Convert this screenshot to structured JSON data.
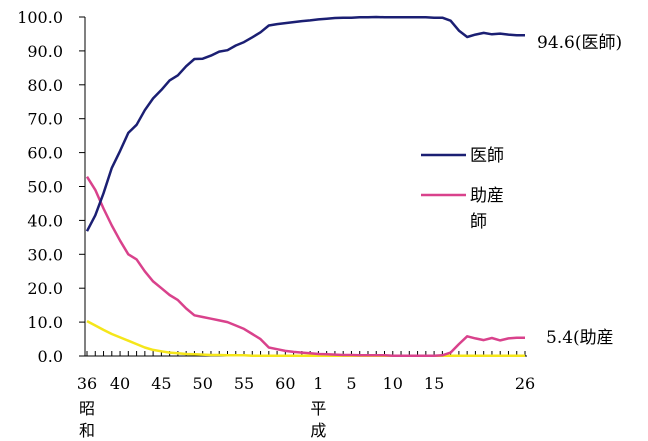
{
  "chart_data": {
    "type": "line",
    "title": "",
    "xlabel": "",
    "ylabel": "",
    "ylim": [
      0,
      100
    ],
    "y_ticks": [
      "0.0",
      "10.0",
      "20.0",
      "30.0",
      "40.0",
      "50.0",
      "60.0",
      "70.0",
      "80.0",
      "90.0",
      "100.0"
    ],
    "x_ticks": [
      "36",
      "40",
      "45",
      "50",
      "55",
      "60",
      "1",
      "5",
      "10",
      "15",
      "26"
    ],
    "era_labels": {
      "showa_1": "昭",
      "showa_2": "和",
      "heisei_1": "平",
      "heisei_2": "成"
    },
    "x": [
      "S36",
      "S37",
      "S38",
      "S39",
      "S40",
      "S41",
      "S42",
      "S43",
      "S44",
      "S45",
      "S46",
      "S47",
      "S48",
      "S49",
      "S50",
      "S51",
      "S52",
      "S53",
      "S54",
      "S55",
      "S56",
      "S57",
      "S58",
      "S59",
      "S60",
      "S61",
      "S62",
      "S63",
      "H1",
      "H2",
      "H3",
      "H4",
      "H5",
      "H6",
      "H7",
      "H8",
      "H9",
      "H10",
      "H11",
      "H12",
      "H13",
      "H14",
      "H15",
      "H16",
      "H17",
      "H18",
      "H19",
      "H20",
      "H21",
      "H22",
      "H23",
      "H24",
      "H25",
      "H26"
    ],
    "series": [
      {
        "name": "医師",
        "color": "#1b1f73",
        "values": [
          36.8,
          41.5,
          48.0,
          55.5,
          60.5,
          65.8,
          68.2,
          72.5,
          76.0,
          78.5,
          81.3,
          82.8,
          85.5,
          87.6,
          87.7,
          88.6,
          89.8,
          90.2,
          91.6,
          92.6,
          94.0,
          95.5,
          97.5,
          97.9,
          98.2,
          98.5,
          98.8,
          99.0,
          99.3,
          99.5,
          99.7,
          99.8,
          99.8,
          99.9,
          99.9,
          100.0,
          99.9,
          99.9,
          99.9,
          99.9,
          99.9,
          99.9,
          99.8,
          99.8,
          98.9,
          96.0,
          94.1,
          94.8,
          95.3,
          94.9,
          95.1,
          94.8,
          94.6,
          94.6
        ]
      },
      {
        "name": "助産師",
        "color": "#d9428c",
        "values": [
          52.9,
          49.0,
          43.5,
          38.5,
          34.0,
          30.0,
          28.5,
          25.0,
          22.0,
          20.0,
          18.0,
          16.5,
          14.0,
          12.0,
          11.5,
          11.0,
          10.5,
          10.0,
          9.0,
          8.0,
          6.5,
          5.0,
          2.5,
          2.0,
          1.5,
          1.2,
          1.0,
          0.8,
          0.6,
          0.5,
          0.4,
          0.3,
          0.3,
          0.2,
          0.2,
          0.2,
          0.2,
          0.1,
          0.1,
          0.1,
          0.1,
          0.1,
          0.1,
          0.2,
          1.0,
          3.5,
          5.8,
          5.2,
          4.7,
          5.3,
          4.6,
          5.2,
          5.4,
          5.4
        ]
      },
      {
        "name": "",
        "color": "#f5e61a",
        "values": [
          10.3,
          9.0,
          7.7,
          6.5,
          5.5,
          4.5,
          3.5,
          2.5,
          1.8,
          1.4,
          1.0,
          0.8,
          0.6,
          0.5,
          0.4,
          0.3,
          0.3,
          0.2,
          0.2,
          0.2,
          0.1,
          0.1,
          0.1,
          0.1,
          0.1,
          0.1,
          0.1,
          0.1,
          0.1,
          0.1,
          0.1,
          0.1,
          0.1,
          0.1,
          0.1,
          0.1,
          0.1,
          0.1,
          0.1,
          0.1,
          0.1,
          0.1,
          0.1,
          0.1,
          0.1,
          0.1,
          0.1,
          0.1,
          0.1,
          0.1,
          0.1,
          0.1,
          0.1,
          0.1
        ]
      }
    ],
    "legend": [
      {
        "label_line1": "医師",
        "label_line2": "",
        "color": "#1b1f73"
      },
      {
        "label_line1": "助産",
        "label_line2": "師",
        "color": "#d9428c"
      }
    ],
    "legend_position": "right",
    "end_labels": [
      {
        "text": "94.6(医師)",
        "series": 0
      },
      {
        "text": "5.4(助産",
        "series": 1
      }
    ],
    "grid": false
  }
}
